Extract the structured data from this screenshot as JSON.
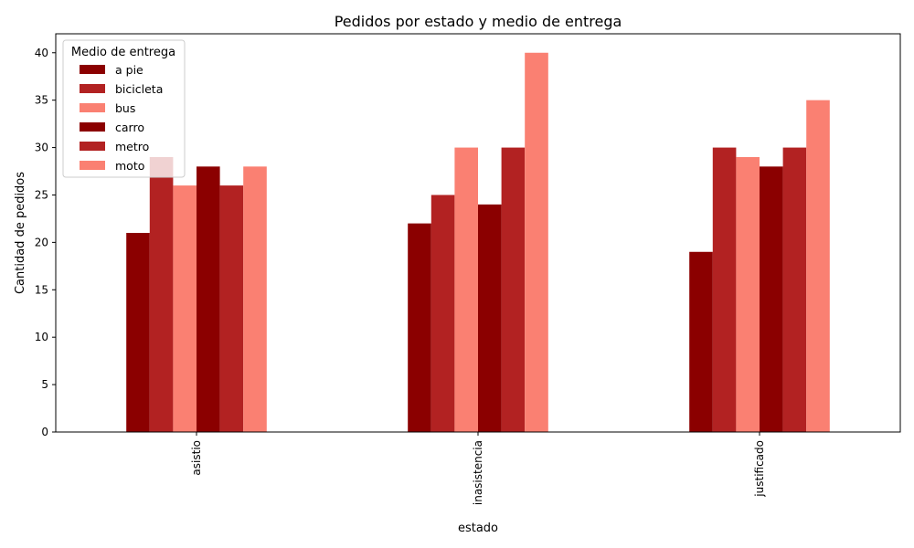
{
  "chart_data": {
    "type": "bar",
    "title": "Pedidos por estado y medio de entrega",
    "xlabel": "estado",
    "ylabel": "Cantidad de pedidos",
    "categories": [
      "asistio",
      "inasistencia",
      "justificado"
    ],
    "ylim": [
      0,
      42
    ],
    "yticks": [
      0,
      5,
      10,
      15,
      20,
      25,
      30,
      35,
      40
    ],
    "legend": {
      "title": "Medio de entrega",
      "placement": "top-left"
    },
    "series": [
      {
        "name": "a pie",
        "color": "#8b0000",
        "values": [
          21,
          22,
          19
        ]
      },
      {
        "name": "bicicleta",
        "color": "#b22222",
        "values": [
          29,
          25,
          30
        ]
      },
      {
        "name": "bus",
        "color": "#fa8072",
        "values": [
          26,
          30,
          29
        ]
      },
      {
        "name": "carro",
        "color": "#8b0000",
        "values": [
          28,
          24,
          28
        ]
      },
      {
        "name": "metro",
        "color": "#b22222",
        "values": [
          26,
          30,
          30
        ]
      },
      {
        "name": "moto",
        "color": "#fa8072",
        "values": [
          28,
          40,
          35
        ]
      }
    ]
  }
}
